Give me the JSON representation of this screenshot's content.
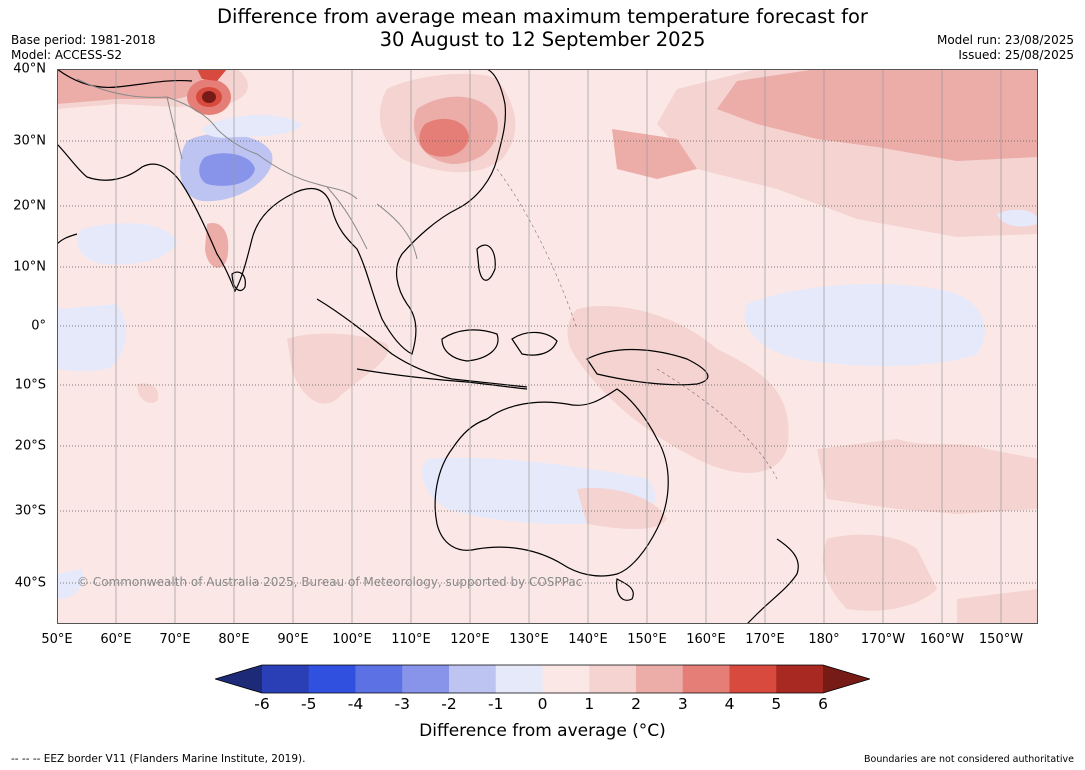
{
  "header": {
    "title_line1": "Difference from average mean maximum temperature forecast for",
    "title_line2": "30 August to 12 September 2025",
    "base_period": "Base period: 1981-2018",
    "model": "Model: ACCESS-S2",
    "model_run": "Model run: 23/08/2025",
    "issued": "Issued: 25/08/2025"
  },
  "map": {
    "lat_labels": [
      "40°N",
      "30°N",
      "20°N",
      "10°N",
      "0°",
      "10°S",
      "20°S",
      "30°S",
      "40°S"
    ],
    "lon_labels": [
      "50°E",
      "60°E",
      "70°E",
      "80°E",
      "90°E",
      "100°E",
      "110°E",
      "120°E",
      "130°E",
      "140°E",
      "150°E",
      "160°E",
      "170°E",
      "180°",
      "170°W",
      "160°W",
      "150°W"
    ],
    "copyright": "© Commonwealth of Australia 2025, Bureau of Meteorology, supported by COSPPac",
    "ocean_color": "#fbe8e6"
  },
  "colorbar": {
    "tick_labels": [
      "-6",
      "-5",
      "-4",
      "-3",
      "-2",
      "-1",
      "0",
      "1",
      "2",
      "3",
      "4",
      "5",
      "6"
    ],
    "colors": [
      "#1c2a78",
      "#2a3fb5",
      "#3050e0",
      "#5c72e4",
      "#8794ea",
      "#bdc4f2",
      "#e6e9fa",
      "#fbe8e6",
      "#f4d3d1",
      "#ecaca8",
      "#e57e77",
      "#d84a3e",
      "#a82822",
      "#771b16"
    ],
    "label": "Difference from average (°C)"
  },
  "footer": {
    "legend_text": "-- -- -- EEZ border V11 (Flanders Marine Institute, 2019).",
    "disclaimer": "Boundaries are not considered authoritative"
  }
}
